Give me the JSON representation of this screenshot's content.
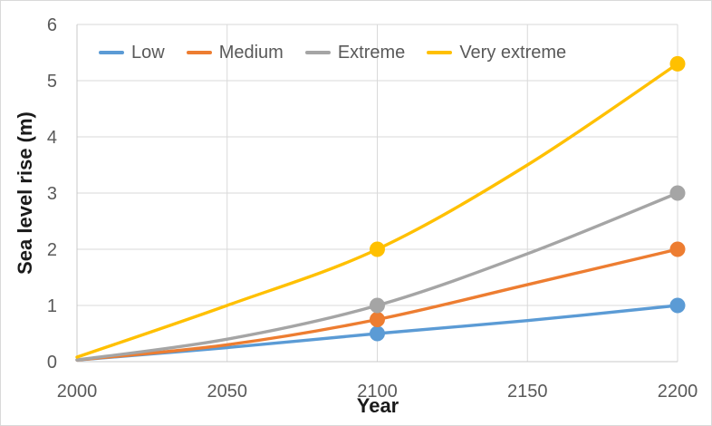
{
  "chart_data": {
    "type": "line",
    "title": "",
    "xlabel": "Year",
    "ylabel": "Sea level rise (m)",
    "x": [
      2000,
      2050,
      2100,
      2150,
      2200
    ],
    "xticks": [
      "2000",
      "2050",
      "2100",
      "2150",
      "2200"
    ],
    "yticks": [
      "0",
      "1",
      "2",
      "3",
      "4",
      "5",
      "6"
    ],
    "xlim": [
      2000,
      2200
    ],
    "ylim": [
      0,
      6
    ],
    "grid": true,
    "line_style": "smooth",
    "legend_position": "top-inside-horizontal",
    "marker_x": [
      2100,
      2200
    ],
    "series": [
      {
        "name": "Low",
        "color": "#5B9BD5",
        "values": [
          0.03,
          0.25,
          0.5,
          0.73,
          1.0
        ]
      },
      {
        "name": "Medium",
        "color": "#ED7D31",
        "values": [
          0.03,
          0.3,
          0.75,
          1.37,
          2.0
        ]
      },
      {
        "name": "Extreme",
        "color": "#A5A5A5",
        "values": [
          0.03,
          0.4,
          1.0,
          1.92,
          3.0
        ]
      },
      {
        "name": "Very extreme",
        "color": "#FFC000",
        "values": [
          0.08,
          1.0,
          2.0,
          3.5,
          5.3
        ]
      }
    ],
    "colors": {
      "gridline": "#D9D9D9",
      "axis_line": "#C8C8C8",
      "tick_text": "#595959",
      "axis_title_text": "#1a1a1a",
      "legend_text": "#595959",
      "background": "#FFFFFF",
      "chart_border": "#D9D9D9"
    }
  }
}
